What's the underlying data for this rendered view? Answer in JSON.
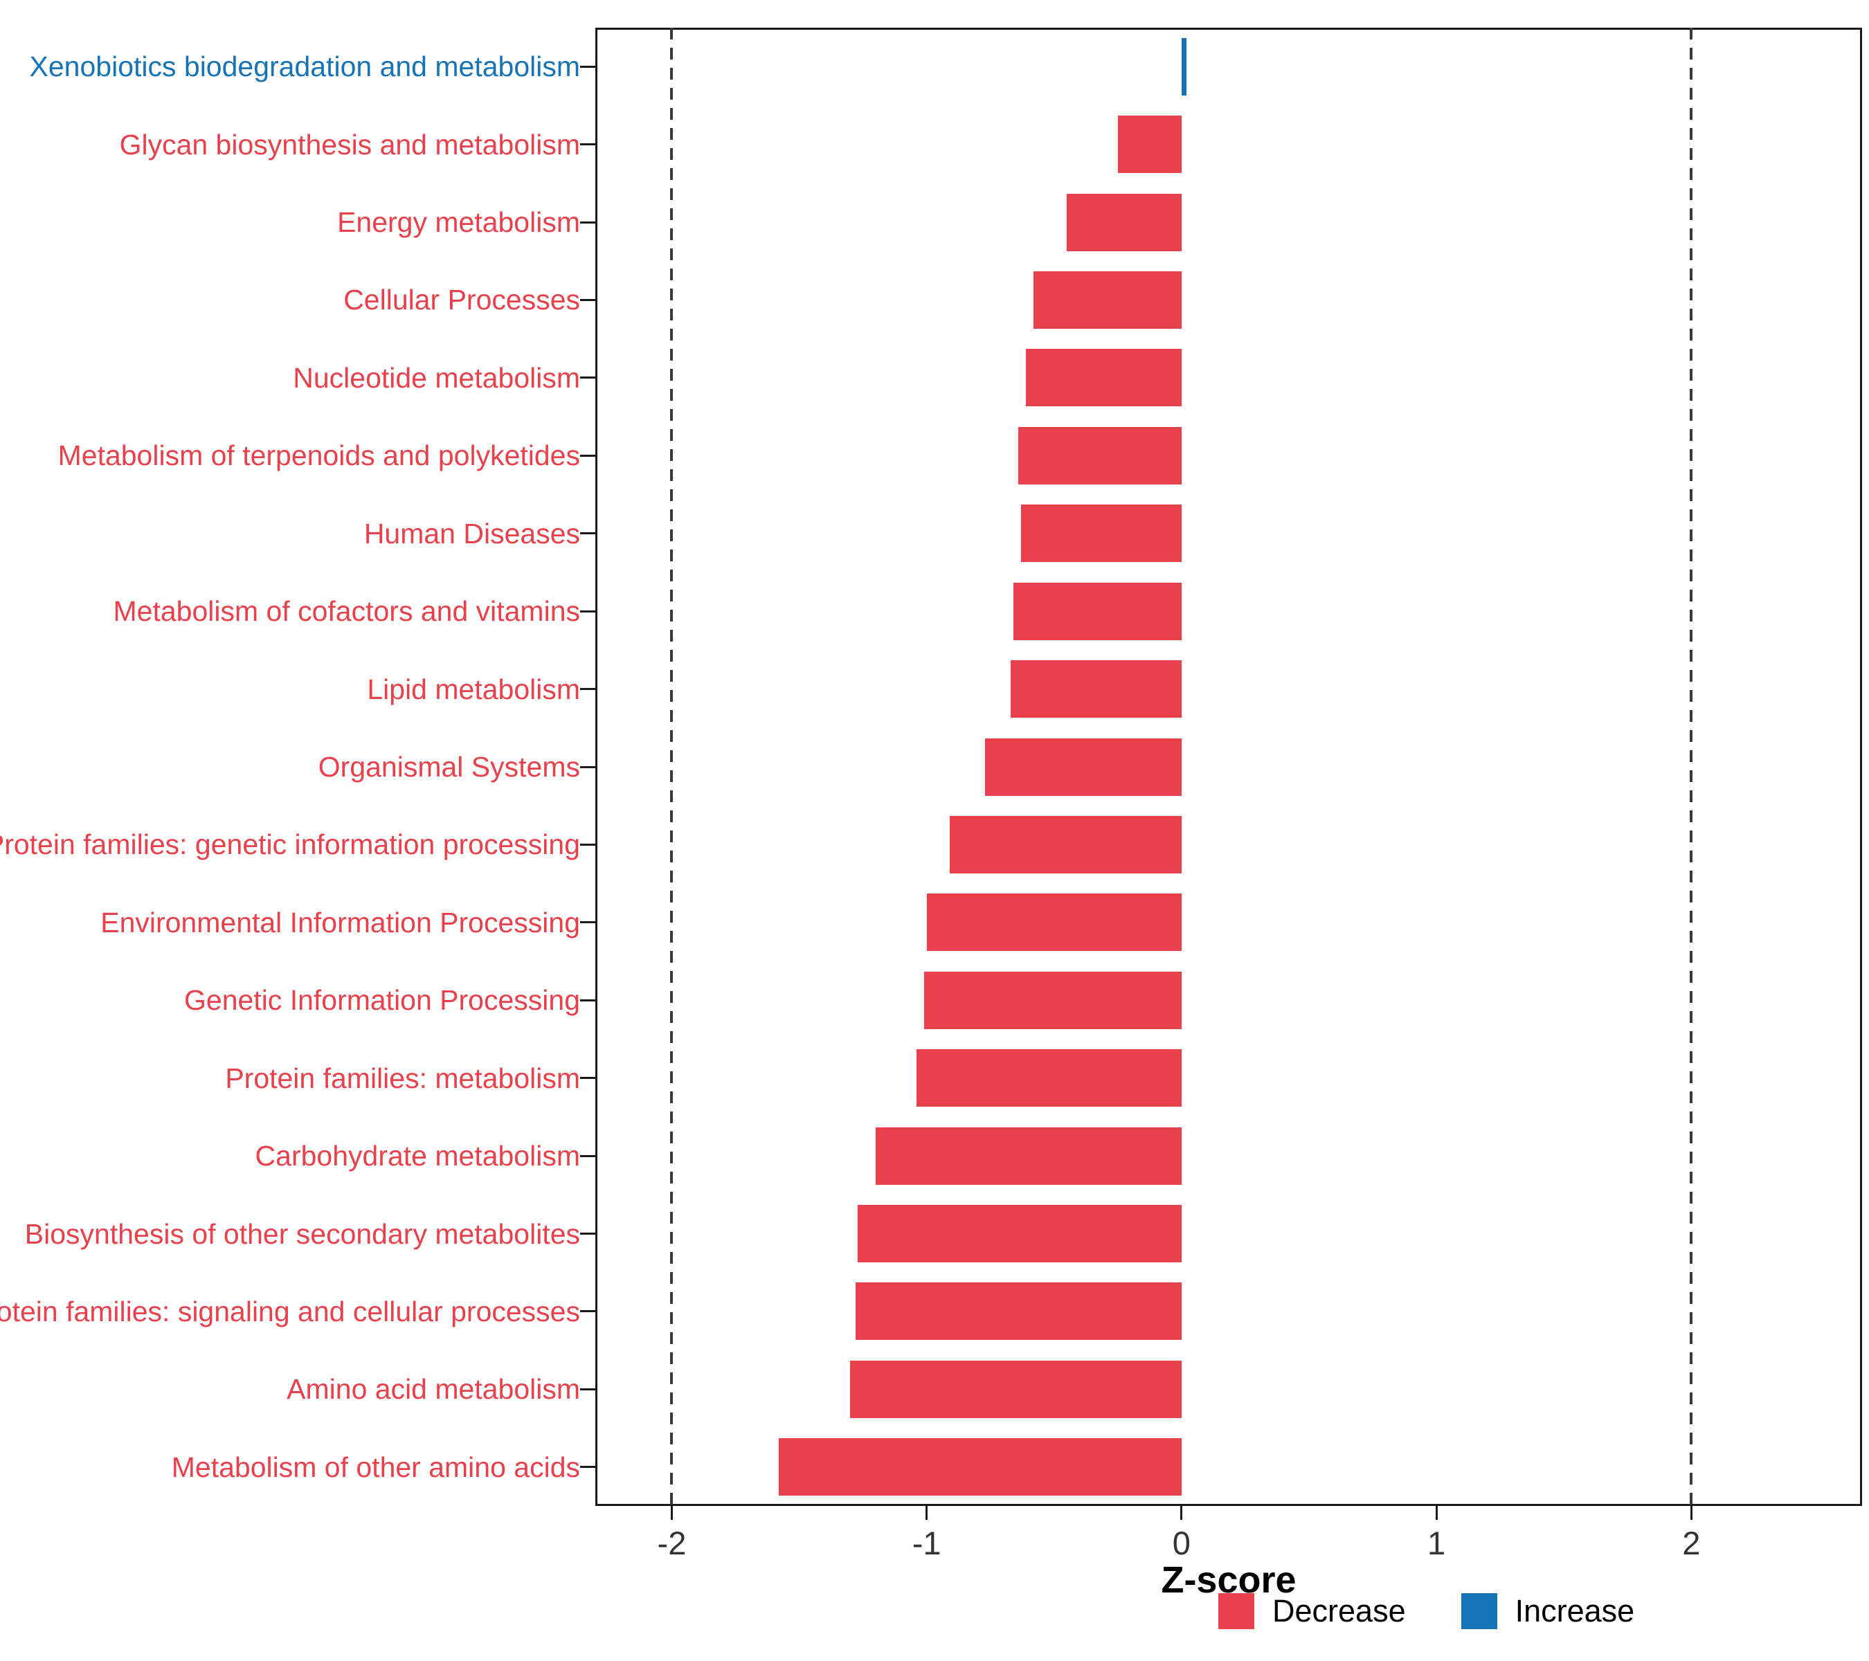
{
  "chart_data": {
    "type": "bar",
    "orientation": "horizontal",
    "title": "",
    "xlabel": "Z-score",
    "ylabel": "",
    "grid": "none",
    "legend_position": "bottom-right",
    "xlim": [
      -2.3,
      2.67
    ],
    "xticks": [
      {
        "v": -2,
        "label": "-2"
      },
      {
        "v": -1,
        "label": "-1"
      },
      {
        "v": 0,
        "label": "0"
      },
      {
        "v": 1,
        "label": "1"
      },
      {
        "v": 2,
        "label": "2"
      }
    ],
    "dashed_lines": [
      -2,
      2
    ],
    "categories": [
      "Xenobiotics biodegradation and metabolism",
      "Glycan biosynthesis and metabolism",
      "Energy metabolism",
      "Cellular Processes",
      "Nucleotide metabolism",
      "Metabolism of terpenoids and polyketides",
      "Human Diseases",
      "Metabolism of cofactors and vitamins",
      "Lipid metabolism",
      "Organismal Systems",
      "Protein families: genetic information processing",
      "Environmental Information Processing",
      "Genetic Information Processing",
      "Protein families: metabolism",
      "Carbohydrate metabolism",
      "Biosynthesis of other secondary metabolites",
      "Protein families: signaling and cellular processes",
      "Amino acid metabolism",
      "Metabolism of other amino acids"
    ],
    "values": [
      0.02,
      -0.25,
      -0.45,
      -0.58,
      -0.61,
      -0.64,
      -0.63,
      -0.66,
      -0.67,
      -0.77,
      -0.91,
      -1.0,
      -1.01,
      -1.04,
      -1.2,
      -1.27,
      -1.28,
      -1.3,
      -1.58
    ],
    "groups": [
      "Increase",
      "Decrease",
      "Decrease",
      "Decrease",
      "Decrease",
      "Decrease",
      "Decrease",
      "Decrease",
      "Decrease",
      "Decrease",
      "Decrease",
      "Decrease",
      "Decrease",
      "Decrease",
      "Decrease",
      "Decrease",
      "Decrease",
      "Decrease",
      "Decrease"
    ],
    "colors": {
      "Decrease": "#E8414C",
      "Increase": "#1673B5"
    },
    "legend": [
      {
        "key": "Decrease",
        "label": "Decrease"
      },
      {
        "key": "Increase",
        "label": "Increase"
      }
    ]
  }
}
